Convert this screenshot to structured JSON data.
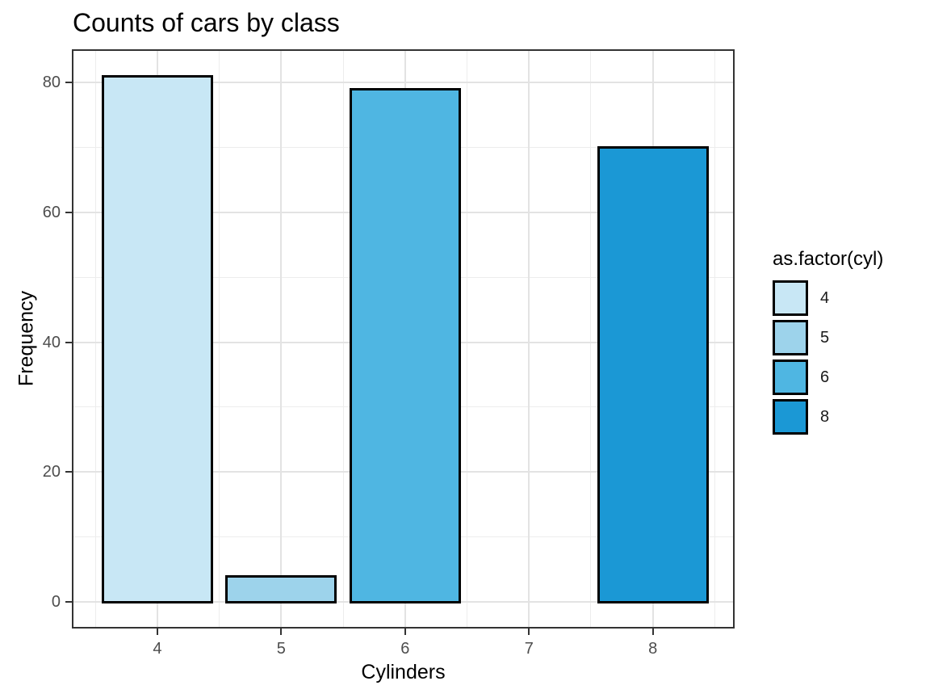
{
  "figure": {
    "title": "Counts of cars by class"
  },
  "chart_data": {
    "type": "bar",
    "title": "Counts of cars by class",
    "xlabel": "Cylinders",
    "ylabel": "Frequency",
    "categories": [
      4,
      5,
      6,
      8
    ],
    "values": [
      81,
      4,
      79,
      70
    ],
    "bar_colors": [
      "#C8E7F5",
      "#9DD3EB",
      "#4FB6E2",
      "#1B98D5"
    ],
    "bar_outline_color": "#000000",
    "bar_width": 0.9,
    "xlim": [
      3.31,
      8.66
    ],
    "ylim": [
      -4.05,
      85.05
    ],
    "x_ticks": {
      "values": [
        4,
        5,
        6,
        7,
        8
      ],
      "labels": [
        "4",
        "5",
        "6",
        "7",
        "8"
      ]
    },
    "y_ticks": {
      "values": [
        0,
        20,
        40,
        60,
        80
      ],
      "labels": [
        "0",
        "20",
        "40",
        "60",
        "80"
      ]
    },
    "x_minor": [
      3.5,
      4.5,
      5.5,
      6.5,
      7.5,
      8.5
    ],
    "y_minor": [
      10,
      30,
      50,
      70
    ],
    "grid": {
      "on": true,
      "major_color": "#E3E3E3",
      "minor_color": "#EDEDED"
    },
    "panel_border_color": "#333333",
    "tick_color": "#333333",
    "tick_label_color": "#4D4D4D",
    "legend": {
      "title": "as.factor(cyl)",
      "position": "right",
      "entries": [
        {
          "label": "4",
          "color": "#C8E7F5"
        },
        {
          "label": "5",
          "color": "#9DD3EB"
        },
        {
          "label": "6",
          "color": "#4FB6E2"
        },
        {
          "label": "8",
          "color": "#1B98D5"
        }
      ]
    }
  }
}
